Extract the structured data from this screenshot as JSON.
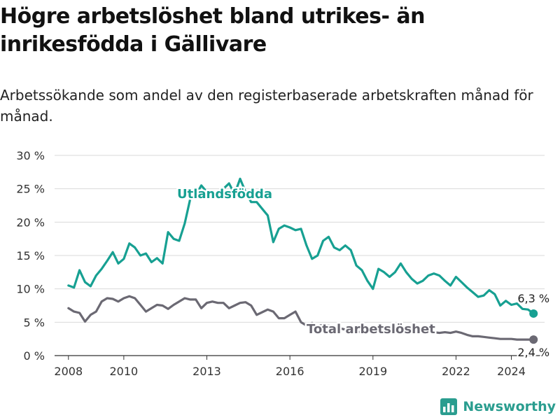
{
  "title": "Högre arbetslöshet bland utrikes- än inrikesfödda i Gällivare",
  "subtitle": "Arbetssökande som andel av den registerbaserade arbetskraften månad för månad.",
  "brand": "Newsworthy",
  "colors": {
    "utlandsfodda": "#17a092",
    "total": "#6b6973",
    "grid": "#d9d9d9",
    "axis": "#333333"
  },
  "chart_data": {
    "type": "line",
    "title": "Högre arbetslöshet bland utrikes- än inrikesfödda i Gällivare",
    "ylabel": "",
    "ylim": [
      0,
      30
    ],
    "xlim": [
      2007.5,
      2025.2
    ],
    "y_ticks": [
      0,
      5,
      10,
      15,
      20,
      25,
      30
    ],
    "y_tick_labels": [
      "0 %",
      "5 %",
      "10 %",
      "15 %",
      "20 %",
      "25 %",
      "30 %"
    ],
    "x_ticks": [
      2008,
      2010,
      2013,
      2016,
      2019,
      2022,
      2024
    ],
    "x_tick_labels": [
      "2008",
      "2010",
      "2013",
      "2016",
      "2019",
      "2022",
      "2024"
    ],
    "grid": true,
    "series": [
      {
        "name": "Utlandsfödda",
        "end_label": "6,3 %",
        "x": [
          2008.0,
          2008.2,
          2008.4,
          2008.6,
          2008.8,
          2009.0,
          2009.2,
          2009.4,
          2009.6,
          2009.8,
          2010.0,
          2010.2,
          2010.4,
          2010.6,
          2010.8,
          2011.0,
          2011.2,
          2011.4,
          2011.6,
          2011.8,
          2012.0,
          2012.2,
          2012.4,
          2012.6,
          2012.8,
          2013.0,
          2013.2,
          2013.4,
          2013.6,
          2013.8,
          2014.0,
          2014.2,
          2014.4,
          2014.6,
          2014.8,
          2015.0,
          2015.2,
          2015.4,
          2015.6,
          2015.8,
          2016.0,
          2016.2,
          2016.4,
          2016.6,
          2016.8,
          2017.0,
          2017.2,
          2017.4,
          2017.6,
          2017.8,
          2018.0,
          2018.2,
          2018.4,
          2018.6,
          2018.8,
          2019.0,
          2019.2,
          2019.4,
          2019.6,
          2019.8,
          2020.0,
          2020.2,
          2020.4,
          2020.6,
          2020.8,
          2021.0,
          2021.2,
          2021.4,
          2021.6,
          2021.8,
          2022.0,
          2022.2,
          2022.4,
          2022.6,
          2022.8,
          2023.0,
          2023.2,
          2023.4,
          2023.6,
          2023.8,
          2024.0,
          2024.2,
          2024.4,
          2024.6,
          2024.8
        ],
        "values": [
          10.5,
          10.2,
          12.8,
          11.0,
          10.4,
          12.0,
          13.0,
          14.2,
          15.5,
          13.8,
          14.5,
          16.8,
          16.2,
          15.0,
          15.3,
          14.0,
          14.6,
          13.8,
          18.5,
          17.5,
          17.2,
          19.8,
          23.5,
          24.0,
          25.5,
          24.5,
          24.0,
          24.5,
          25.0,
          25.8,
          24.2,
          26.5,
          24.5,
          23.0,
          23.0,
          22.0,
          21.0,
          17.0,
          19.0,
          19.5,
          19.2,
          18.8,
          19.0,
          16.5,
          14.5,
          15.0,
          17.2,
          17.8,
          16.2,
          15.8,
          16.5,
          15.8,
          13.5,
          12.8,
          11.2,
          10.0,
          13.0,
          12.5,
          11.8,
          12.5,
          13.8,
          12.5,
          11.5,
          10.8,
          11.2,
          12.0,
          12.3,
          12.0,
          11.2,
          10.5,
          11.8,
          11.0,
          10.2,
          9.5,
          8.8,
          9.0,
          9.8,
          9.2,
          7.5,
          8.2,
          7.6,
          7.8,
          7.0,
          6.9,
          6.3
        ]
      },
      {
        "name": "Total arbetslöshet",
        "end_label": "2,4 %",
        "x": [
          2008.0,
          2008.2,
          2008.4,
          2008.6,
          2008.8,
          2009.0,
          2009.2,
          2009.4,
          2009.6,
          2009.8,
          2010.0,
          2010.2,
          2010.4,
          2010.6,
          2010.8,
          2011.0,
          2011.2,
          2011.4,
          2011.6,
          2011.8,
          2012.0,
          2012.2,
          2012.4,
          2012.6,
          2012.8,
          2013.0,
          2013.2,
          2013.4,
          2013.6,
          2013.8,
          2014.0,
          2014.2,
          2014.4,
          2014.6,
          2014.8,
          2015.0,
          2015.2,
          2015.4,
          2015.6,
          2015.8,
          2016.0,
          2016.2,
          2016.4,
          2016.6,
          2016.8,
          2017.0,
          2017.2,
          2017.4,
          2017.6,
          2017.8,
          2018.0,
          2018.2,
          2018.4,
          2018.6,
          2018.8,
          2019.0,
          2019.2,
          2019.4,
          2019.6,
          2019.8,
          2020.0,
          2020.2,
          2020.4,
          2020.6,
          2020.8,
          2021.0,
          2021.2,
          2021.4,
          2021.6,
          2021.8,
          2022.0,
          2022.2,
          2022.4,
          2022.6,
          2022.8,
          2023.0,
          2023.2,
          2023.4,
          2023.6,
          2023.8,
          2024.0,
          2024.2,
          2024.4,
          2024.6,
          2024.8
        ],
        "values": [
          7.1,
          6.6,
          6.4,
          5.1,
          6.1,
          6.6,
          8.1,
          8.6,
          8.5,
          8.1,
          8.6,
          8.9,
          8.6,
          7.6,
          6.6,
          7.1,
          7.6,
          7.5,
          7.0,
          7.6,
          8.1,
          8.6,
          8.4,
          8.4,
          7.1,
          7.9,
          8.1,
          7.9,
          7.9,
          7.1,
          7.5,
          7.9,
          8.0,
          7.5,
          6.1,
          6.5,
          6.9,
          6.6,
          5.6,
          5.6,
          6.1,
          6.6,
          5.0,
          4.5,
          4.9,
          4.4,
          4.6,
          4.5,
          4.2,
          4.1,
          3.9,
          3.8,
          3.6,
          3.5,
          3.6,
          3.5,
          3.6,
          3.5,
          3.4,
          3.4,
          3.5,
          3.3,
          3.4,
          3.5,
          3.5,
          3.4,
          3.5,
          3.4,
          3.5,
          3.4,
          3.6,
          3.4,
          3.1,
          2.9,
          2.9,
          2.8,
          2.7,
          2.6,
          2.5,
          2.5,
          2.5,
          2.4,
          2.4,
          2.4,
          2.4
        ]
      }
    ]
  }
}
